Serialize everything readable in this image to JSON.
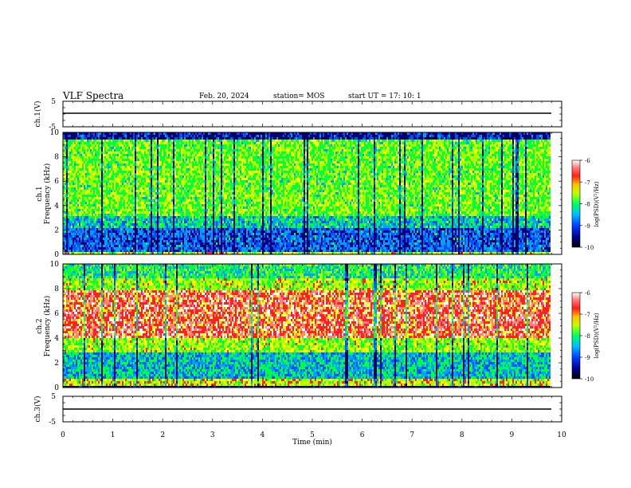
{
  "header": {
    "title": "VLF Spectra",
    "date": "Feb. 20, 2024",
    "station": "station= MOS",
    "start": "start  UT  =   17: 10: 1"
  },
  "chart_data": [
    {
      "type": "line",
      "name": "ch1-voltage",
      "ylabel": "ch.1(V)",
      "ylim": [
        -5,
        5
      ],
      "yticks": [
        "5",
        "-5"
      ],
      "x": [
        0,
        10
      ],
      "values": [
        0,
        0
      ]
    },
    {
      "type": "heatmap",
      "name": "ch1-spectrogram",
      "ylabel": "ch.1\nFrequency (kHz)",
      "ylim": [
        0,
        10
      ],
      "yticks": [
        "0",
        "2",
        "4",
        "6",
        "8",
        "10"
      ],
      "colorbar": {
        "label": "log(PSD)(V²/Hz)",
        "ticks": [
          "-6",
          "-7",
          "-8",
          "-9",
          "-10"
        ],
        "range": [
          -10,
          -6
        ]
      }
    },
    {
      "type": "heatmap",
      "name": "ch2-spectrogram",
      "ylabel": "ch.2\nFrequency (kHz)",
      "ylim": [
        0,
        10
      ],
      "yticks": [
        "0",
        "2",
        "4",
        "6",
        "8",
        "10"
      ],
      "colorbar": {
        "label": "log(PSD)(V²/Hz)",
        "ticks": [
          "-6",
          "-7",
          "-8",
          "-9",
          "-10"
        ],
        "range": [
          -10,
          -6
        ]
      }
    },
    {
      "type": "line",
      "name": "ch3-voltage",
      "ylabel": "ch.3(V)",
      "ylim": [
        -5,
        5
      ],
      "yticks": [
        "5",
        "-5"
      ],
      "x": [
        0,
        10
      ],
      "values": [
        0,
        0
      ]
    }
  ],
  "xaxis": {
    "label": "Time  (min)",
    "range": [
      0,
      10
    ],
    "ticks": [
      "0",
      "1",
      "2",
      "3",
      "4",
      "5",
      "6",
      "7",
      "8",
      "9",
      "10"
    ]
  },
  "colors": {
    "low": "#000080",
    "mid_low": "#00a0ff",
    "mid": "#00ff40",
    "mid_high": "#ffff00",
    "high": "#ff2020",
    "peak": "#ffffff"
  }
}
